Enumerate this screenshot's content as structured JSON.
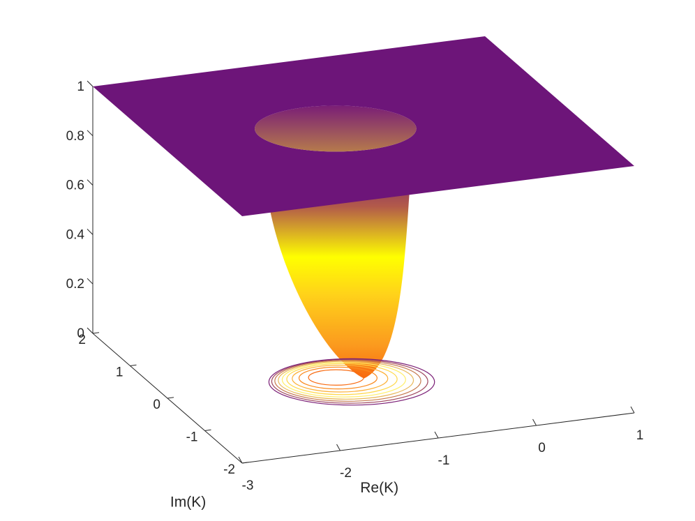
{
  "chart_data": {
    "type": "surface3d",
    "title": "",
    "xlabel": "Re(K)",
    "ylabel": "Im(K)",
    "zlabel": "",
    "xlim": [
      -3,
      1
    ],
    "ylim": [
      -2,
      2
    ],
    "zlim": [
      0,
      1
    ],
    "x_ticks": [
      "-3",
      "-2",
      "-1",
      "0",
      "1"
    ],
    "y_ticks": [
      "-2",
      "-1",
      "0",
      "1",
      "2"
    ],
    "z_ticks": [
      "0",
      "0.2",
      "0.4",
      "0.6",
      "0.8",
      "1"
    ],
    "surface": {
      "description": "flat plane at z = 1 with a funnel-shaped well reaching z ≈ 0 near Re(K) ≈ -1.3, Im(K) ≈ 0",
      "plateau_z": 1,
      "well_center": {
        "re": -1.3,
        "im": 0
      },
      "well_min_z": 0,
      "well_radius": 0.85
    },
    "contour_levels": [
      0.1,
      0.2,
      0.3,
      0.4,
      0.5,
      0.6,
      0.7,
      0.8,
      0.9
    ],
    "colormap": [
      "#6d1579",
      "#b6485e",
      "#f58b29",
      "#ffff00",
      "#fb6d17"
    ],
    "colors": {
      "plateau": "#6d1579",
      "axis": "#262626"
    }
  }
}
